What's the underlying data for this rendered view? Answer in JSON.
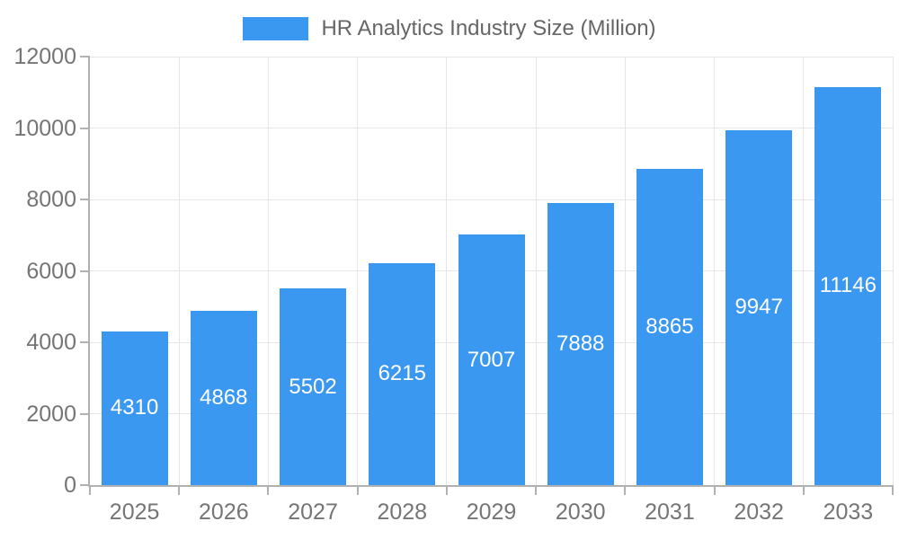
{
  "chart_data": {
    "type": "bar",
    "legend": "HR Analytics Industry Size (Million)",
    "legend_position": "top",
    "categories": [
      "2025",
      "2026",
      "2027",
      "2028",
      "2029",
      "2030",
      "2031",
      "2032",
      "2033"
    ],
    "values": [
      4310,
      4868,
      5502,
      6215,
      7007,
      7888,
      8865,
      9947,
      11146
    ],
    "xlabel": "",
    "ylabel": "",
    "ylim": [
      0,
      12000
    ],
    "yticks": [
      0,
      2000,
      4000,
      6000,
      8000,
      10000,
      12000
    ],
    "grid": true,
    "colors": {
      "bar": "#3b98f0",
      "bar_label": "#ffffff",
      "axis_text": "#757575",
      "legend_text": "#666666",
      "grid_line": "#e6e6e6",
      "axis_line": "#b1b1b1",
      "background": "#ffffff"
    }
  }
}
